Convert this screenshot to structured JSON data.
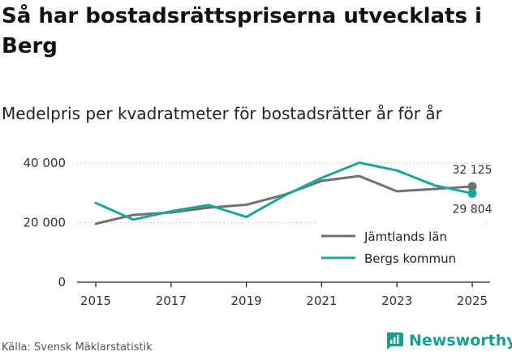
{
  "header": {
    "title": "Så har bostadsrättspriserna utvecklats i Berg",
    "subtitle": "Medelpris per kvadratmeter för bostadsrätter år för år"
  },
  "footer": {
    "source": "Källa: Svensk Mäklarstatistik",
    "brand": "Newsworthy"
  },
  "colors": {
    "series1": "#707070",
    "series2": "#1aa79a",
    "brand": "#1a9c8f"
  },
  "chart_data": {
    "type": "line",
    "title": "Medelpris per kvadratmeter för bostadsrätter år för år",
    "xlabel": "",
    "ylabel": "",
    "x": [
      2015,
      2016,
      2017,
      2018,
      2019,
      2020,
      2021,
      2022,
      2023,
      2024,
      2025
    ],
    "xticks": [
      2015,
      2017,
      2019,
      2021,
      2023,
      2025
    ],
    "xtick_labels": [
      "2015",
      "2017",
      "2019",
      "2021",
      "2023",
      "2025"
    ],
    "ylim": [
      0,
      40000
    ],
    "yticks": [
      0,
      20000,
      40000
    ],
    "ytick_labels": [
      "0",
      "20 000",
      "40 000"
    ],
    "grid": "horizontal dotted",
    "legend": "bottom-right",
    "series": [
      {
        "name": "Jämtlands län",
        "values": [
          19600,
          22600,
          23400,
          25000,
          26000,
          29300,
          34000,
          35600,
          30500,
          31300,
          32125
        ],
        "end_label": "32 125"
      },
      {
        "name": "Bergs kommun",
        "values": [
          26600,
          21000,
          23800,
          25900,
          21900,
          29000,
          35000,
          40100,
          37500,
          32500,
          29804
        ],
        "end_label": "29 804"
      }
    ]
  }
}
